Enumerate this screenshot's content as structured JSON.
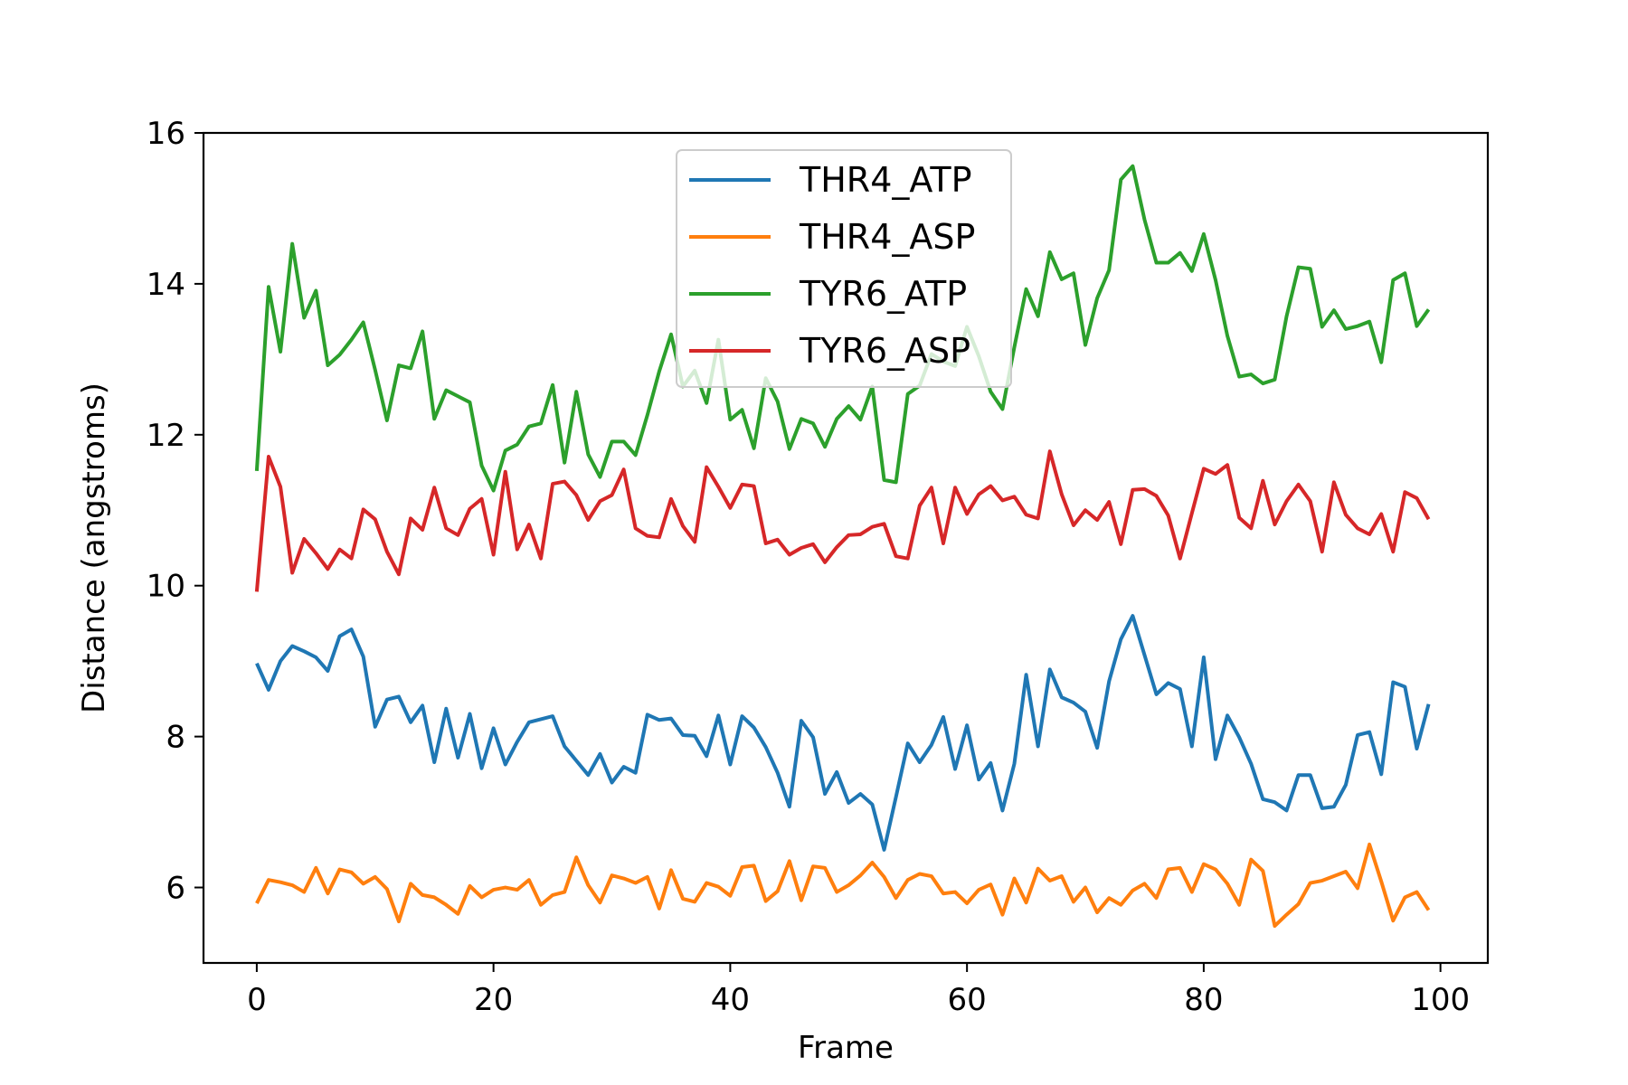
{
  "chart_data": {
    "type": "line",
    "xlabel": "Frame",
    "ylabel": "Distance (angstroms)",
    "xlim": [
      -4.5,
      104
    ],
    "ylim": [
      5.0,
      16.0
    ],
    "xticks": [
      0,
      20,
      40,
      60,
      80,
      100
    ],
    "yticks": [
      6,
      8,
      10,
      12,
      14,
      16
    ],
    "grid": false,
    "legend_position": "top-center",
    "x": [
      0,
      1,
      2,
      3,
      4,
      5,
      6,
      7,
      8,
      9,
      10,
      11,
      12,
      13,
      14,
      15,
      16,
      17,
      18,
      19,
      20,
      21,
      22,
      23,
      24,
      25,
      26,
      27,
      28,
      29,
      30,
      31,
      32,
      33,
      34,
      35,
      36,
      37,
      38,
      39,
      40,
      41,
      42,
      43,
      44,
      45,
      46,
      47,
      48,
      49,
      50,
      51,
      52,
      53,
      54,
      55,
      56,
      57,
      58,
      59,
      60,
      61,
      62,
      63,
      64,
      65,
      66,
      67,
      68,
      69,
      70,
      71,
      72,
      73,
      74,
      75,
      76,
      77,
      78,
      79,
      80,
      81,
      82,
      83,
      84,
      85,
      86,
      87,
      88,
      89,
      90,
      91,
      92,
      93,
      94,
      95,
      96,
      97,
      98,
      99
    ],
    "series": [
      {
        "name": "THR4_ATP",
        "color": "#1f77b4",
        "values": [
          8.97,
          8.62,
          9.0,
          9.2,
          9.13,
          9.05,
          8.87,
          9.33,
          9.42,
          9.06,
          8.13,
          8.49,
          8.53,
          8.19,
          8.41,
          7.66,
          8.37,
          7.72,
          8.3,
          7.58,
          8.11,
          7.63,
          7.93,
          8.19,
          8.23,
          8.27,
          7.87,
          7.68,
          7.49,
          7.77,
          7.39,
          7.6,
          7.52,
          8.29,
          8.22,
          8.24,
          8.02,
          8.01,
          7.74,
          8.28,
          7.63,
          8.27,
          8.12,
          7.86,
          7.52,
          7.07,
          8.21,
          7.99,
          7.24,
          7.53,
          7.12,
          7.24,
          7.1,
          6.5,
          7.2,
          7.91,
          7.66,
          7.89,
          8.26,
          7.57,
          8.15,
          7.43,
          7.65,
          7.02,
          7.64,
          8.82,
          7.87,
          8.89,
          8.52,
          8.45,
          8.33,
          7.85,
          8.73,
          9.29,
          9.6,
          9.08,
          8.56,
          8.71,
          8.63,
          7.87,
          9.05,
          7.7,
          8.28,
          7.99,
          7.64,
          7.17,
          7.13,
          7.02,
          7.49,
          7.49,
          7.05,
          7.07,
          7.36,
          8.02,
          8.06,
          7.5,
          8.72,
          8.66,
          7.84,
          8.43
        ]
      },
      {
        "name": "THR4_ASP",
        "color": "#ff7f0e",
        "values": [
          5.79,
          6.1,
          6.07,
          6.03,
          5.94,
          6.26,
          5.92,
          6.24,
          6.2,
          6.05,
          6.14,
          5.98,
          5.55,
          6.05,
          5.9,
          5.87,
          5.77,
          5.65,
          6.02,
          5.87,
          5.97,
          6.0,
          5.97,
          6.1,
          5.77,
          5.9,
          5.94,
          6.4,
          6.03,
          5.8,
          6.16,
          6.12,
          6.06,
          6.14,
          5.72,
          6.23,
          5.85,
          5.81,
          6.06,
          6.01,
          5.89,
          6.27,
          6.29,
          5.82,
          5.95,
          6.35,
          5.83,
          6.28,
          6.26,
          5.94,
          6.03,
          6.16,
          6.33,
          6.14,
          5.86,
          6.1,
          6.18,
          6.15,
          5.92,
          5.94,
          5.79,
          5.97,
          6.04,
          5.64,
          6.12,
          5.8,
          6.25,
          6.09,
          6.15,
          5.81,
          6.0,
          5.67,
          5.86,
          5.77,
          5.96,
          6.05,
          5.86,
          6.24,
          6.26,
          5.94,
          6.31,
          6.24,
          6.05,
          5.77,
          6.37,
          6.22,
          5.49,
          5.64,
          5.78,
          6.06,
          6.09,
          6.15,
          6.21,
          5.99,
          6.57,
          6.08,
          5.56,
          5.87,
          5.94,
          5.7
        ]
      },
      {
        "name": "TYR6_ATP",
        "color": "#2ca02c",
        "values": [
          11.52,
          13.96,
          13.1,
          14.53,
          13.55,
          13.91,
          12.92,
          13.06,
          13.26,
          13.49,
          12.86,
          12.19,
          12.92,
          12.88,
          13.37,
          12.21,
          12.59,
          12.51,
          12.43,
          11.59,
          11.26,
          11.79,
          11.87,
          12.11,
          12.15,
          12.66,
          11.63,
          12.57,
          11.74,
          11.44,
          11.91,
          11.91,
          11.73,
          12.26,
          12.84,
          13.33,
          12.64,
          12.85,
          12.42,
          13.26,
          12.2,
          12.33,
          11.82,
          12.75,
          12.44,
          11.81,
          12.21,
          12.15,
          11.84,
          12.21,
          12.38,
          12.2,
          12.64,
          11.4,
          11.37,
          12.54,
          12.65,
          13.07,
          12.97,
          12.91,
          13.43,
          13.04,
          12.57,
          12.34,
          13.16,
          13.93,
          13.57,
          14.42,
          14.06,
          14.14,
          13.19,
          13.81,
          14.18,
          15.38,
          15.56,
          14.85,
          14.28,
          14.28,
          14.41,
          14.17,
          14.66,
          14.05,
          13.31,
          12.77,
          12.8,
          12.68,
          12.73,
          13.57,
          14.22,
          14.2,
          13.43,
          13.65,
          13.4,
          13.44,
          13.5,
          12.96,
          14.05,
          14.14,
          13.44,
          13.66
        ]
      },
      {
        "name": "TYR6_ASP",
        "color": "#d62728",
        "values": [
          9.92,
          11.71,
          11.31,
          10.17,
          10.62,
          10.43,
          10.22,
          10.48,
          10.36,
          11.01,
          10.88,
          10.45,
          10.15,
          10.89,
          10.74,
          11.3,
          10.76,
          10.67,
          11.02,
          11.15,
          10.41,
          11.51,
          10.48,
          10.81,
          10.36,
          11.35,
          11.38,
          11.2,
          10.87,
          11.12,
          11.2,
          11.54,
          10.76,
          10.66,
          10.64,
          11.15,
          10.79,
          10.58,
          11.57,
          11.31,
          11.03,
          11.34,
          11.32,
          10.56,
          10.61,
          10.41,
          10.5,
          10.55,
          10.31,
          10.51,
          10.67,
          10.68,
          10.78,
          10.82,
          10.39,
          10.36,
          11.06,
          11.3,
          10.56,
          11.3,
          10.95,
          11.21,
          11.32,
          11.13,
          11.18,
          10.94,
          10.89,
          11.78,
          11.21,
          10.8,
          11.0,
          10.87,
          11.11,
          10.55,
          11.27,
          11.28,
          11.19,
          10.93,
          10.36,
          10.96,
          11.55,
          11.48,
          11.6,
          10.9,
          10.76,
          11.39,
          10.81,
          11.12,
          11.34,
          11.12,
          10.45,
          11.37,
          10.94,
          10.76,
          10.68,
          10.95,
          10.45,
          11.24,
          11.16,
          10.88
        ]
      }
    ]
  }
}
